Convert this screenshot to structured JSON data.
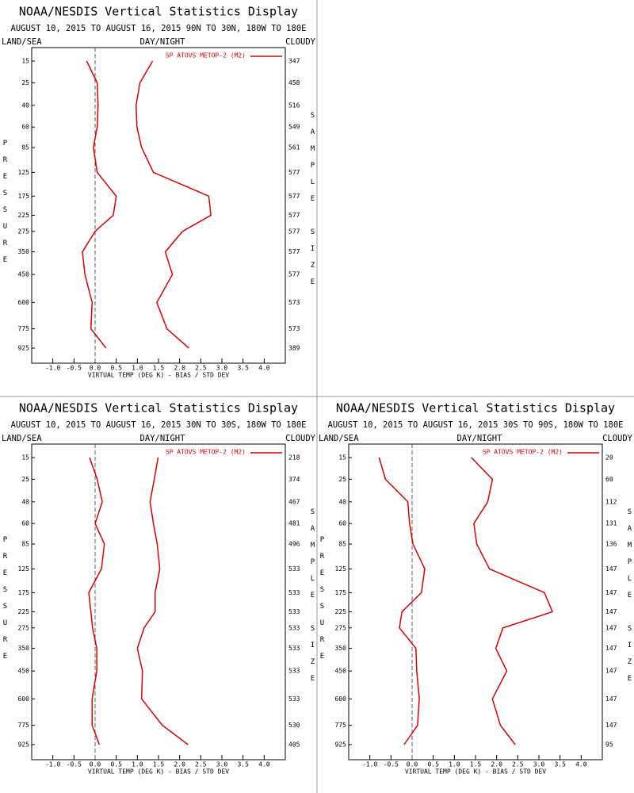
{
  "chart_data": [
    {
      "type": "line",
      "title": "NOAA/NESDIS Vertical Statistics Display",
      "subtitle": "AUGUST 10, 2015 TO AUGUST 16, 2015  90N TO 30N, 180W TO 180E",
      "left_label": "LAND/SEA",
      "center_label": "DAY/NIGHT",
      "right_label": "CLOUDY",
      "ylabel": "PRESSURE",
      "y2label": "SAMPLE SIZE",
      "xlabel": "VIRTUAL TEMP (DEG K) - BIAS / STD DEV",
      "legend": "SP ATOVS METOP-2 (M2)",
      "y": [
        15,
        25,
        40,
        60,
        85,
        125,
        175,
        225,
        275,
        350,
        450,
        600,
        775,
        925
      ],
      "sample_size": [
        347,
        458,
        516,
        549,
        561,
        577,
        577,
        577,
        577,
        577,
        577,
        573,
        573,
        389
      ],
      "series": [
        {
          "color": "#dd0000",
          "values": [
            -0.2,
            0.05,
            0.07,
            0.05,
            -0.04,
            0.05,
            0.5,
            0.43,
            0,
            -0.3,
            -0.24,
            -0.07,
            -0.1,
            0.26
          ]
        },
        {
          "color": "#dd0000",
          "values": [
            1.36,
            1.06,
            0.97,
            0.99,
            1.1,
            1.38,
            2.69,
            2.74,
            2.07,
            1.66,
            1.83,
            1.46,
            1.7,
            2.22
          ]
        }
      ],
      "xlim": [
        -1.5,
        4.5
      ],
      "ylim": [
        15,
        925
      ],
      "xticks": [
        {
          "value": -1,
          "label": "-1.0"
        },
        -0.5,
        {
          "value": 0,
          "label": "0.0"
        },
        0.5,
        {
          "value": 1,
          "label": "1.0"
        },
        1.5,
        {
          "value": 2,
          "label": "2.0"
        },
        2.5,
        {
          "value": 3,
          "label": "3.0"
        },
        3.5,
        {
          "value": 4,
          "label": "4.0"
        }
      ]
    },
    {
      "type": "line",
      "title": "NOAA/NESDIS Vertical Statistics Display",
      "subtitle": "AUGUST 10, 2015 TO AUGUST 16, 2015  30N TO 30S, 180W TO 180E",
      "left_label": "LAND/SEA",
      "center_label": "DAY/NIGHT",
      "right_label": "CLOUDY",
      "ylabel": "PRESSURE",
      "y2label": "SAMPLE SIZE",
      "xlabel": "VIRTUAL TEMP (DEG K) - BIAS / STD DEV",
      "legend": "SP ATOVS METOP-2 (M2)",
      "y": [
        15,
        25,
        40,
        60,
        85,
        125,
        175,
        225,
        275,
        350,
        450,
        600,
        775,
        925
      ],
      "sample_size": [
        218,
        374,
        467,
        481,
        496,
        533,
        533,
        533,
        533,
        533,
        533,
        533,
        530,
        405
      ],
      "series": [
        {
          "color": "#dd0000",
          "values": [
            -0.13,
            0.05,
            0.17,
            0,
            0.22,
            0.15,
            -0.15,
            -0.1,
            -0.06,
            0.04,
            0.04,
            -0.07,
            -0.07,
            0.1
          ]
        },
        {
          "color": "#dd0000",
          "values": [
            1.49,
            1.4,
            1.3,
            1.38,
            1.47,
            1.53,
            1.42,
            1.42,
            1.16,
            1.0,
            1.12,
            1.1,
            1.59,
            2.2
          ]
        }
      ],
      "xlim": [
        -1.5,
        4.5
      ],
      "ylim": [
        15,
        925
      ],
      "xticks": [
        {
          "value": -1,
          "label": "-1.0"
        },
        -0.5,
        {
          "value": 0,
          "label": "0.0"
        },
        0.5,
        {
          "value": 1,
          "label": "1.0"
        },
        1.5,
        {
          "value": 2,
          "label": "2.0"
        },
        2.5,
        {
          "value": 3,
          "label": "3.0"
        },
        3.5,
        {
          "value": 4,
          "label": "4.0"
        }
      ]
    },
    {
      "type": "line",
      "title": "NOAA/NESDIS Vertical Statistics Display",
      "subtitle": "AUGUST 10, 2015 TO AUGUST 16, 2015  30S TO 90S, 180W TO 180E",
      "left_label": "LAND/SEA",
      "center_label": "DAY/NIGHT",
      "right_label": "CLOUDY",
      "ylabel": "PRESSURE",
      "y2label": "SAMPLE SIZE",
      "xlabel": "VIRTUAL TEMP (DEG K) - BIAS / STD DEV",
      "legend": "SP ATOVS METOP-2 (M2)",
      "y": [
        15,
        25,
        40,
        60,
        85,
        125,
        175,
        225,
        275,
        350,
        450,
        600,
        775,
        925
      ],
      "sample_size": [
        20,
        60,
        112,
        131,
        136,
        147,
        147,
        147,
        147,
        147,
        147,
        147,
        147,
        95
      ],
      "series": [
        {
          "color": "#dd0000",
          "values": [
            -0.78,
            -0.63,
            -0.1,
            -0.06,
            0.02,
            0.3,
            0.22,
            -0.24,
            -0.3,
            0.09,
            0.11,
            0.17,
            0.13,
            -0.19
          ]
        },
        {
          "color": "#dd0000",
          "values": [
            1.4,
            1.9,
            1.79,
            1.46,
            1.53,
            1.83,
            3.13,
            3.32,
            2.15,
            1.98,
            2.24,
            1.9,
            2.09,
            2.44
          ]
        }
      ],
      "xlim": [
        -1.5,
        4.5
      ],
      "ylim": [
        15,
        925
      ],
      "xticks": [
        {
          "value": -1,
          "label": "-1.0"
        },
        -0.5,
        {
          "value": 0,
          "label": "0.0"
        },
        0.5,
        {
          "value": 1,
          "label": "1.0"
        },
        1.5,
        {
          "value": 2,
          "label": "2.0"
        },
        2.5,
        {
          "value": 3,
          "label": "3.0"
        },
        3.5,
        {
          "value": 4,
          "label": "4.0"
        }
      ]
    }
  ]
}
